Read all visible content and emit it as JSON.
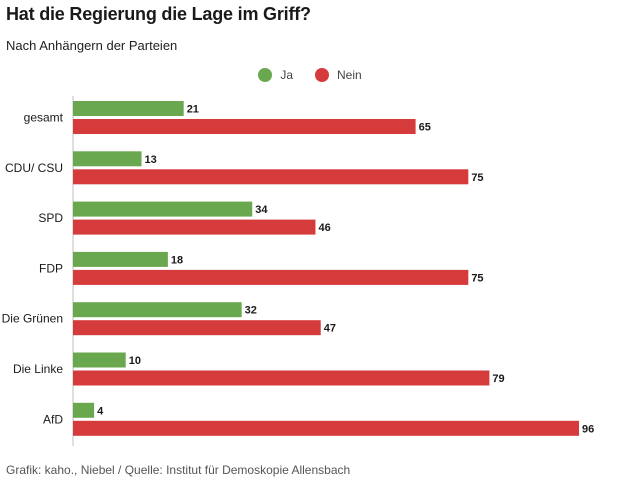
{
  "header": {
    "title": "Hat die Regierung die Lage im Griff?",
    "subtitle": "Nach Anhängern der Parteien"
  },
  "footer": {
    "credit": "Grafik: kaho., Niebel / Quelle: Institut für Demoskopie Allensbach"
  },
  "colors": {
    "ja": "#6aa84f",
    "nein": "#d63b3b"
  },
  "chart_data": {
    "type": "bar",
    "orientation": "horizontal",
    "title": "Hat die Regierung die Lage im Griff?",
    "subtitle": "Nach Anhängern der Parteien",
    "categories": [
      "gesamt",
      "CDU/ CSU",
      "SPD",
      "FDP",
      "Die Grünen",
      "Die Linke",
      "AfD"
    ],
    "series": [
      {
        "name": "Ja",
        "color": "#6aa84f",
        "values": [
          21,
          13,
          34,
          18,
          32,
          10,
          4
        ]
      },
      {
        "name": "Nein",
        "color": "#d63b3b",
        "values": [
          65,
          75,
          46,
          75,
          47,
          79,
          96
        ]
      }
    ],
    "xlim": [
      0,
      96
    ],
    "legend": "top-center",
    "grid": false,
    "data_labels": true
  }
}
